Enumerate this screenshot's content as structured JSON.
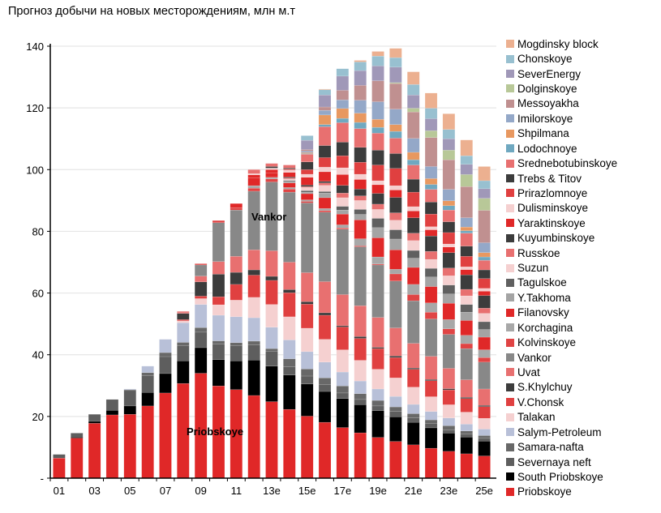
{
  "chart_data": {
    "type": "bar",
    "stacked": true,
    "title": "Прогноз добычи на новых месторождениям, млн м.т",
    "xlabel": "",
    "ylabel": "",
    "ylim": [
      0,
      140
    ],
    "y_ticks": [
      0,
      20,
      40,
      60,
      80,
      100,
      120,
      140
    ],
    "y_tick_labels": [
      "-",
      "20",
      "40",
      "60",
      "80",
      "100",
      "120",
      "140"
    ],
    "grid": true,
    "legend_position": "right",
    "categories": [
      "01",
      "",
      "03",
      "",
      "05",
      "",
      "07",
      "",
      "09",
      "",
      "11",
      "",
      "13e",
      "",
      "15e",
      "",
      "17e",
      "",
      "19e",
      "",
      "21e",
      "",
      "23e",
      "",
      "25e"
    ],
    "annotations": [
      {
        "text": "Vankor",
        "series": "Vankor"
      },
      {
        "text": "Priobskoye",
        "series": "Priobskoye"
      }
    ],
    "series": [
      {
        "name": "Priobskoye",
        "color": "#e02828",
        "values": [
          6.5,
          13,
          17.8,
          20.5,
          20.7,
          23.4,
          27.6,
          30.7,
          34,
          29.9,
          28.7,
          26.8,
          24.8,
          22.3,
          20.1,
          18.1,
          16.4,
          14.7,
          13.2,
          11.9,
          10.8,
          9.7,
          8.7,
          7.9,
          7.2
        ]
      },
      {
        "name": "South Priobskoye",
        "color": "#000000",
        "values": [
          0,
          0.3,
          0.6,
          1.5,
          2.7,
          4.4,
          6.3,
          7.3,
          8.3,
          8.5,
          9.3,
          11.5,
          11.5,
          11.1,
          10.4,
          10,
          9.4,
          9.1,
          8.7,
          8,
          7.3,
          6.6,
          5.9,
          5.4,
          4.8
        ]
      },
      {
        "name": "Severnaya neft",
        "color": "#5e5e5e",
        "values": [
          1.2,
          1.3,
          2.3,
          3.5,
          5,
          5.5,
          5.5,
          5,
          5,
          5,
          5,
          5,
          4.8,
          2.7,
          2.6,
          2.3,
          1.8,
          1.7,
          1.5,
          1.7,
          1.4,
          1.5,
          1.1,
          1.1,
          0.9
        ]
      },
      {
        "name": "Samara-nafta",
        "color": "#686868",
        "values": [
          0,
          0,
          0,
          0,
          0.3,
          0.9,
          1.3,
          1,
          1.5,
          1.1,
          0.9,
          1.1,
          0.9,
          2.6,
          2.3,
          2.1,
          2.3,
          1.9,
          1.8,
          1.5,
          1.4,
          1.1,
          1.3,
          0.9,
          0.9
        ]
      },
      {
        "name": "Salym-Petroleum",
        "color": "#b8c0d8",
        "values": [
          0,
          0,
          0,
          0,
          0.2,
          2.1,
          4.3,
          6.4,
          7.5,
          8.3,
          8.4,
          7.6,
          6.9,
          6.1,
          5.6,
          5.1,
          4.5,
          4.1,
          3.7,
          3.4,
          3,
          2.7,
          2.5,
          2.2,
          2.1
        ]
      },
      {
        "name": "Talakan",
        "color": "#f5d0d0",
        "values": [
          0,
          0,
          0,
          0,
          0,
          0,
          0,
          0.6,
          1.9,
          3.4,
          5.4,
          6.6,
          7.4,
          7.5,
          7.6,
          7.4,
          7.2,
          6.7,
          6.4,
          6,
          5.6,
          4.8,
          4.3,
          3.9,
          3.5
        ]
      },
      {
        "name": "V.Chonsk",
        "color": "#e04040",
        "values": [
          0,
          0,
          0,
          0,
          0,
          0,
          0,
          0.4,
          0.8,
          2.6,
          5.1,
          7.2,
          7.8,
          7.8,
          7.8,
          7.8,
          7.4,
          7.1,
          6.7,
          6.6,
          5.8,
          5.2,
          4.8,
          4.4,
          3.8
        ]
      },
      {
        "name": "S.Khylchuy",
        "color": "#3c3c3c",
        "values": [
          0,
          0,
          0,
          0,
          0,
          0,
          0,
          2,
          4.6,
          7.3,
          3.9,
          1.7,
          1.3,
          1,
          0.8,
          0.8,
          0.4,
          0.6,
          0.4,
          0.5,
          0.4,
          0.4,
          0.4,
          0.4,
          0.4
        ]
      },
      {
        "name": "Uvat",
        "color": "#e87070",
        "values": [
          0,
          0,
          0,
          0,
          0,
          0,
          0,
          0.3,
          1.9,
          4.1,
          5.2,
          6.5,
          8.3,
          8.9,
          9.4,
          10.1,
          10.1,
          10,
          9.7,
          9.1,
          8,
          7.5,
          6.6,
          5.7,
          5.3
        ]
      },
      {
        "name": "Vankor",
        "color": "#888888",
        "values": [
          0,
          0,
          0,
          0,
          0,
          0,
          0,
          0,
          3.6,
          12.6,
          15,
          19,
          22.3,
          22.7,
          22.6,
          22.5,
          21.2,
          19.1,
          17,
          15.2,
          13.8,
          12.1,
          11,
          10.1,
          8.7
        ]
      },
      {
        "name": "Kolvinskoye",
        "color": "#e04444",
        "values": [
          0,
          0,
          0,
          0,
          0,
          0,
          0,
          0.3,
          0.4,
          0.7,
          0.8,
          1,
          1,
          1,
          0.5,
          0.5,
          0.4,
          0.3,
          0.3,
          2.3,
          2,
          2.2,
          1.8,
          1.6,
          1.5
        ]
      },
      {
        "name": "Korchagina",
        "color": "#a8a8a8",
        "values": [
          0,
          0,
          0,
          0,
          0,
          0,
          0,
          0,
          0,
          0,
          0,
          0.8,
          0.5,
          0.5,
          0.5,
          0.7,
          1,
          2.3,
          2.3,
          1.5,
          3.3,
          3,
          3,
          2.7,
          2.5
        ]
      },
      {
        "name": "Filanovsky",
        "color": "#e02828",
        "values": [
          0,
          0,
          0,
          0,
          0,
          0,
          0,
          0,
          0,
          0,
          1.3,
          2.5,
          1.5,
          1.5,
          2,
          3.5,
          3.5,
          6.1,
          6.2,
          6.3,
          5.5,
          5.3,
          5.3,
          4.8,
          4.1
        ]
      },
      {
        "name": "Y.Takhoma",
        "color": "#a4a4a4",
        "values": [
          0,
          0,
          0,
          0,
          0,
          0,
          0,
          0,
          0,
          0,
          0,
          0,
          0,
          0.5,
          0.5,
          1.5,
          1.3,
          1.8,
          3.3,
          3.5,
          3,
          3.1,
          3,
          2.7,
          2.5
        ]
      },
      {
        "name": "Tagulskoe",
        "color": "#606060",
        "values": [
          0,
          0,
          0,
          0,
          0,
          0,
          0,
          0,
          0,
          0,
          0,
          0,
          0,
          0.3,
          0.5,
          0.5,
          1.2,
          1.6,
          3,
          3,
          2.5,
          2.8,
          2.9,
          2.5,
          2.5
        ]
      },
      {
        "name": "Suzun",
        "color": "#f5d0d0",
        "values": [
          0,
          0,
          0,
          0,
          0,
          0,
          0,
          0,
          0,
          0,
          0,
          0,
          0,
          0.5,
          1,
          2,
          2.8,
          2.9,
          2.9,
          3.1,
          3.2,
          2.9,
          3,
          2.8,
          2.7
        ]
      },
      {
        "name": "Russkoe",
        "color": "#e87070",
        "values": [
          0,
          0,
          0,
          0,
          0,
          0,
          0,
          0,
          0,
          0,
          0,
          0,
          0,
          0.3,
          0.3,
          0.8,
          1.5,
          1.5,
          1.7,
          2.4,
          2.4,
          2.6,
          2.5,
          2.1,
          1.7
        ]
      },
      {
        "name": "Kuyumbinskoye",
        "color": "#3c3c3c",
        "values": [
          0,
          0,
          0,
          0,
          0,
          0,
          0,
          0,
          0,
          0,
          0,
          0,
          0,
          0.3,
          0.5,
          0.5,
          2.5,
          2.2,
          3.5,
          5,
          5,
          5,
          5,
          4.7,
          4.1
        ]
      },
      {
        "name": "Yaraktinskoye",
        "color": "#e02828",
        "values": [
          0,
          0,
          0,
          0,
          0,
          0,
          0,
          0,
          0,
          0,
          0,
          1,
          1,
          1.5,
          2.5,
          3.1,
          3.5,
          3.1,
          2.8,
          2.4,
          2.2,
          2,
          1.8,
          1.7,
          1.4
        ]
      },
      {
        "name": "Dulisminskoye",
        "color": "#f5d0d0",
        "values": [
          0,
          0,
          0,
          0,
          0,
          0,
          0,
          0,
          0,
          0,
          0,
          0.4,
          0.5,
          0.8,
          1,
          1.5,
          2.2,
          1.7,
          1.3,
          1.4,
          1.4,
          1,
          1,
          0.9,
          0.9
        ]
      },
      {
        "name": "Prirazlomnoye",
        "color": "#e04040",
        "values": [
          0,
          0,
          0,
          0,
          0,
          0,
          0,
          0,
          0,
          0,
          0,
          0,
          0,
          0.3,
          1.5,
          3.1,
          3.9,
          3.9,
          5.1,
          5.6,
          4.7,
          4.1,
          3.7,
          3.4,
          3.2
        ]
      },
      {
        "name": "Trebs & Titov",
        "color": "#3c3c3c",
        "values": [
          0,
          0,
          0,
          0,
          0,
          0,
          0,
          0,
          0,
          0,
          0,
          0,
          0.5,
          0.3,
          2.5,
          3.9,
          4.4,
          4.8,
          4.8,
          4.8,
          4.2,
          3.9,
          3.5,
          3.3,
          2.8
        ]
      },
      {
        "name": "Srednebotubinskoye",
        "color": "#e87070",
        "values": [
          0,
          0,
          0,
          0,
          0,
          0,
          0,
          0,
          0,
          0,
          0,
          1.3,
          1,
          1,
          2.5,
          6.1,
          6.3,
          6.1,
          5.5,
          5,
          4.6,
          4.1,
          3.8,
          4.2,
          3.1
        ]
      },
      {
        "name": "Lodochnoye",
        "color": "#6fa8c0",
        "values": [
          0,
          0,
          0,
          0,
          0,
          0,
          0,
          0,
          0,
          0,
          0,
          0,
          0,
          0,
          0.2,
          0.7,
          1.4,
          2,
          1.9,
          2.2,
          1.7,
          1.6,
          1.4,
          0.8,
          1.1
        ]
      },
      {
        "name": "Shpilmana",
        "color": "#e89860",
        "values": [
          0,
          0,
          0,
          0,
          0,
          0,
          0,
          0,
          0,
          0,
          0,
          0,
          0,
          0,
          0.3,
          3.1,
          3.2,
          3,
          2.6,
          2.2,
          2.4,
          1.9,
          1.6,
          1.2,
          1.4
        ]
      },
      {
        "name": "Imilorskoye",
        "color": "#94a8c8",
        "values": [
          0,
          0,
          0,
          0,
          0,
          0,
          0,
          0,
          0,
          0,
          0,
          0,
          0,
          0,
          0.5,
          1.5,
          2.8,
          4.2,
          5.7,
          5,
          4.5,
          3.9,
          3.7,
          3,
          3.2
        ]
      },
      {
        "name": "Messoyakha",
        "color": "#c09090",
        "values": [
          0,
          0,
          0,
          0,
          0,
          0,
          0,
          0,
          0,
          0,
          0,
          0,
          0,
          0,
          0.5,
          1.1,
          3.1,
          4.8,
          6.8,
          8.3,
          8.6,
          9.4,
          9.6,
          10.1,
          10.5
        ]
      },
      {
        "name": "Dolginskoye",
        "color": "#b8c898",
        "values": [
          0,
          0,
          0,
          0,
          0,
          0,
          0,
          0,
          0,
          0,
          0,
          0,
          0,
          0,
          0,
          0,
          0,
          0,
          0,
          0.3,
          1.2,
          2.2,
          3.1,
          3.9,
          3.9
        ]
      },
      {
        "name": "SeverEnergy",
        "color": "#a098b8",
        "values": [
          0,
          0,
          0,
          0,
          0,
          0,
          0,
          0,
          0,
          0,
          0,
          0,
          0,
          0,
          3,
          3.9,
          4.6,
          4.8,
          4.8,
          5,
          4.3,
          3.9,
          3.7,
          3.3,
          3.1
        ]
      },
      {
        "name": "Chonskoye",
        "color": "#98c0d0",
        "values": [
          0,
          0,
          0,
          0,
          0,
          0,
          0,
          0,
          0,
          0,
          0,
          0,
          0,
          0,
          1.5,
          1.7,
          2.4,
          2.8,
          3.2,
          3.1,
          3.4,
          3.4,
          3,
          2.8,
          2.6
        ]
      },
      {
        "name": "Mogdinsky block",
        "color": "#ecb090",
        "values": [
          0,
          0,
          0,
          0,
          0,
          0,
          0,
          0,
          0,
          0,
          0,
          0,
          0,
          0,
          0,
          0.2,
          0,
          0.5,
          1.5,
          3,
          4.1,
          4.9,
          5.1,
          5.1,
          4.6
        ]
      }
    ]
  }
}
